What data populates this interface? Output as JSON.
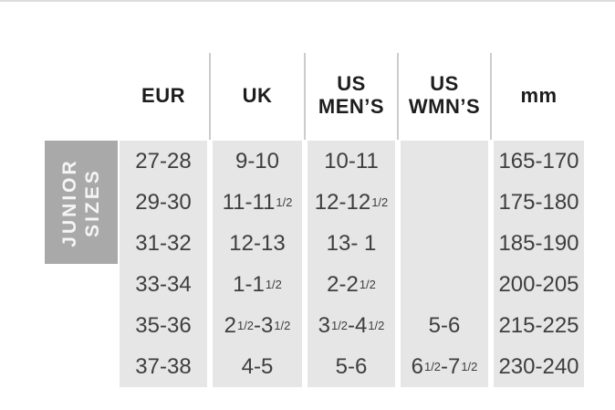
{
  "colors": {
    "cell_bg": "#e6e6e6",
    "label_bg": "#a9a9a9",
    "label_text": "#f5f5f5",
    "header_text": "#1d1d1d",
    "cell_text": "#3e3e3e",
    "separator": "#cccccc",
    "top_rule": "#dcdcdc"
  },
  "size_chart": {
    "side_label": {
      "line1": "JUNIOR",
      "line2": "SIZES"
    },
    "headers": [
      {
        "key": "eur",
        "label": "EUR"
      },
      {
        "key": "uk",
        "label": "UK"
      },
      {
        "key": "us-mens",
        "label": "US\nMEN’S"
      },
      {
        "key": "us-wmns",
        "label": "US\nWMN’S"
      },
      {
        "key": "mm",
        "label": "mm"
      }
    ],
    "rows": [
      [
        "27-28",
        "9-10",
        "10-11",
        "",
        "165-170"
      ],
      [
        "29-30",
        "11-11{1/2}",
        "12-12{1/2}",
        "",
        "175-180"
      ],
      [
        "31-32",
        "12-13",
        "13- 1",
        "",
        "185-190"
      ],
      [
        "33-34",
        "1-1{1/2}",
        "2-2{1/2}",
        "",
        "200-205"
      ],
      [
        "35-36",
        "2{1/2}-3{1/2}",
        "3{1/2}-4{1/2}",
        "5-6",
        "215-225"
      ],
      [
        "37-38",
        "4-5",
        "5-6",
        "6{1/2}-7{1/2}",
        "230-240"
      ]
    ]
  },
  "chart_data": {
    "type": "table",
    "group_label": "JUNIOR SIZES",
    "columns": [
      "EUR",
      "UK",
      "US MEN’S",
      "US WMN’S",
      "mm"
    ],
    "rows": [
      [
        "27-28",
        "9-10",
        "10-11",
        "",
        "165-170"
      ],
      [
        "29-30",
        "11-11½",
        "12-12½",
        "",
        "175-180"
      ],
      [
        "31-32",
        "12-13",
        "13- 1",
        "",
        "185-190"
      ],
      [
        "33-34",
        "1-1½",
        "2-2½",
        "",
        "200-205"
      ],
      [
        "35-36",
        "2½-3½",
        "3½-4½",
        "5-6",
        "215-225"
      ],
      [
        "37-38",
        "4-5",
        "5-6",
        "6½-7½",
        "230-240"
      ]
    ],
    "layout": "group label on left side covers first three rows; gray column blocks separated by white gutters; header separated by thin vertical lines"
  }
}
